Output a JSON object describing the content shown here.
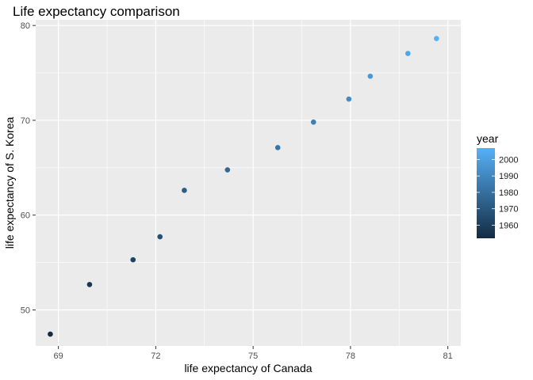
{
  "chart_data": {
    "type": "scatter",
    "title": "Life expectancy comparison",
    "xlabel": "life expectancy of Canada",
    "ylabel": "life expectancy of S. Korea",
    "xlim": [
      68.3,
      81.4
    ],
    "ylim": [
      46.2,
      80.6
    ],
    "xticks": [
      69,
      72,
      75,
      78,
      81
    ],
    "yticks": [
      50,
      60,
      70,
      80
    ],
    "grid": true,
    "legend": {
      "title": "year",
      "position": "right",
      "ticks": [
        1960,
        1970,
        1980,
        1990,
        2000
      ],
      "range": [
        1952,
        2007
      ],
      "color_low": "#132B43",
      "color_high": "#56B1F7"
    },
    "points": [
      {
        "year": 1952,
        "x": 68.75,
        "y": 47.45
      },
      {
        "year": 1957,
        "x": 69.96,
        "y": 52.68
      },
      {
        "year": 1962,
        "x": 71.3,
        "y": 55.29
      },
      {
        "year": 1967,
        "x": 72.13,
        "y": 57.72
      },
      {
        "year": 1972,
        "x": 72.88,
        "y": 62.61
      },
      {
        "year": 1977,
        "x": 74.21,
        "y": 64.77
      },
      {
        "year": 1982,
        "x": 75.76,
        "y": 67.12
      },
      {
        "year": 1987,
        "x": 76.86,
        "y": 69.81
      },
      {
        "year": 1992,
        "x": 77.95,
        "y": 72.24
      },
      {
        "year": 1997,
        "x": 78.61,
        "y": 74.65
      },
      {
        "year": 2002,
        "x": 79.77,
        "y": 77.05
      },
      {
        "year": 2007,
        "x": 80.65,
        "y": 78.62
      }
    ]
  }
}
